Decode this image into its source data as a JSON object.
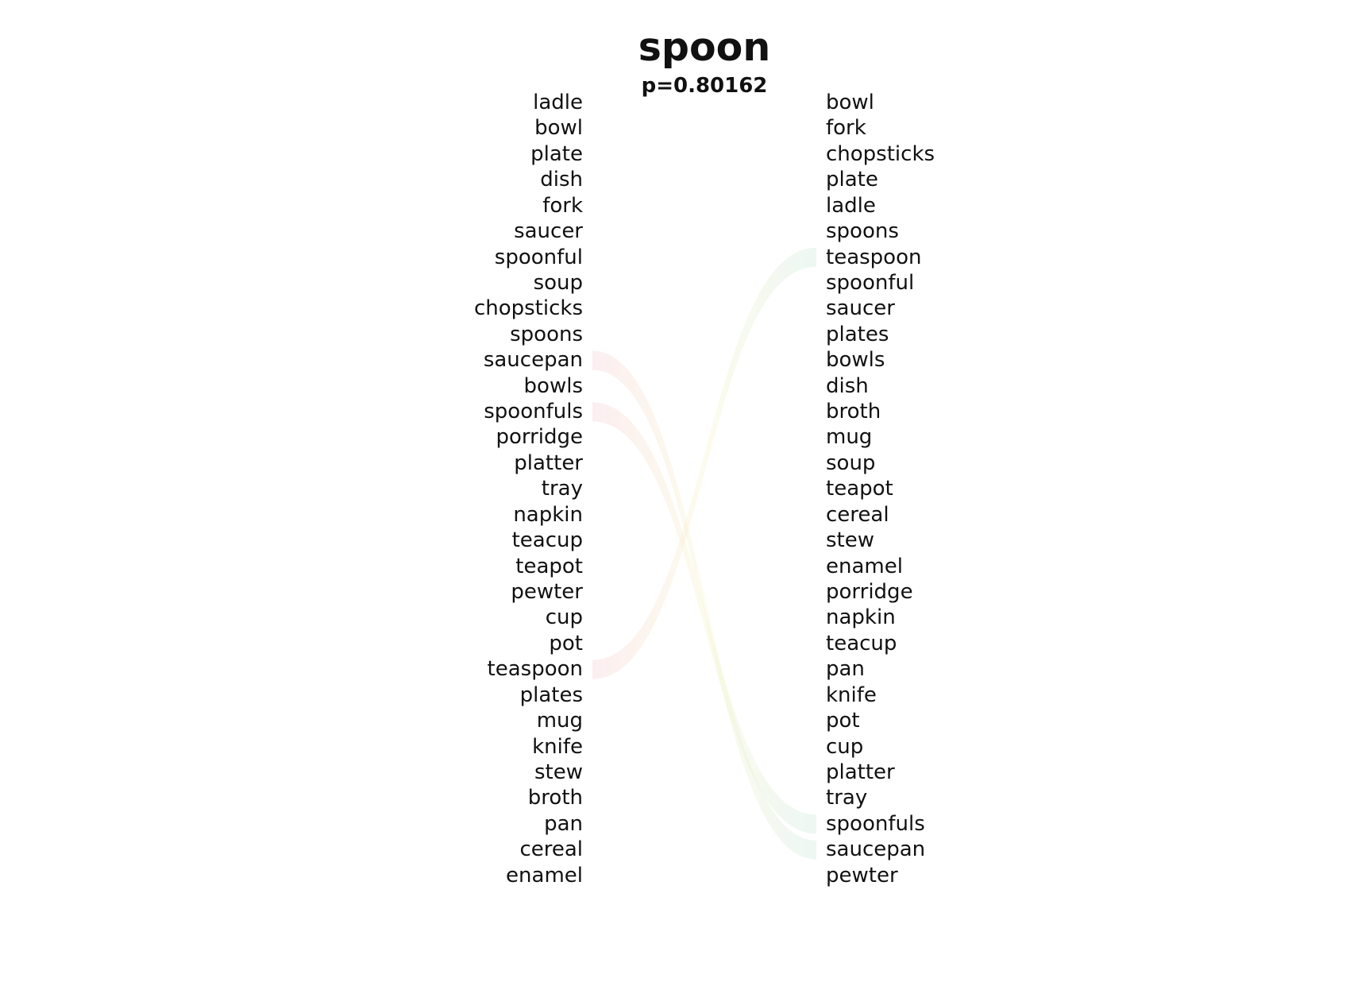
{
  "title": "spoon",
  "subtitle": "p=0.80162",
  "chart_data": {
    "type": "diagram",
    "left_words": [
      "ladle",
      "bowl",
      "plate",
      "dish",
      "fork",
      "saucer",
      "spoonful",
      "soup",
      "chopsticks",
      "spoons",
      "saucepan",
      "bowls",
      "spoonfuls",
      "porridge",
      "platter",
      "tray",
      "napkin",
      "teacup",
      "teapot",
      "pewter",
      "cup",
      "pot",
      "teaspoon",
      "plates",
      "mug",
      "knife",
      "stew",
      "broth",
      "pan",
      "cereal",
      "enamel"
    ],
    "right_words": [
      "bowl",
      "fork",
      "chopsticks",
      "plate",
      "ladle",
      "spoons",
      "teaspoon",
      "spoonful",
      "saucer",
      "plates",
      "bowls",
      "dish",
      "broth",
      "mug",
      "soup",
      "teapot",
      "cereal",
      "stew",
      "enamel",
      "porridge",
      "napkin",
      "teacup",
      "pan",
      "knife",
      "pot",
      "cup",
      "platter",
      "tray",
      "spoonfuls",
      "saucepan",
      "pewter"
    ],
    "highlighted_links": [
      {
        "word": "saucepan",
        "left_rank": 11,
        "right_rank": 30
      },
      {
        "word": "spoonfuls",
        "left_rank": 13,
        "right_rank": 29
      },
      {
        "word": "teaspoon",
        "left_rank": 23,
        "right_rank": 7
      }
    ],
    "colors": {
      "left_end": "#f3c3c8",
      "right_end": "#bfe3d2",
      "middle": "#f6f2c0"
    }
  }
}
